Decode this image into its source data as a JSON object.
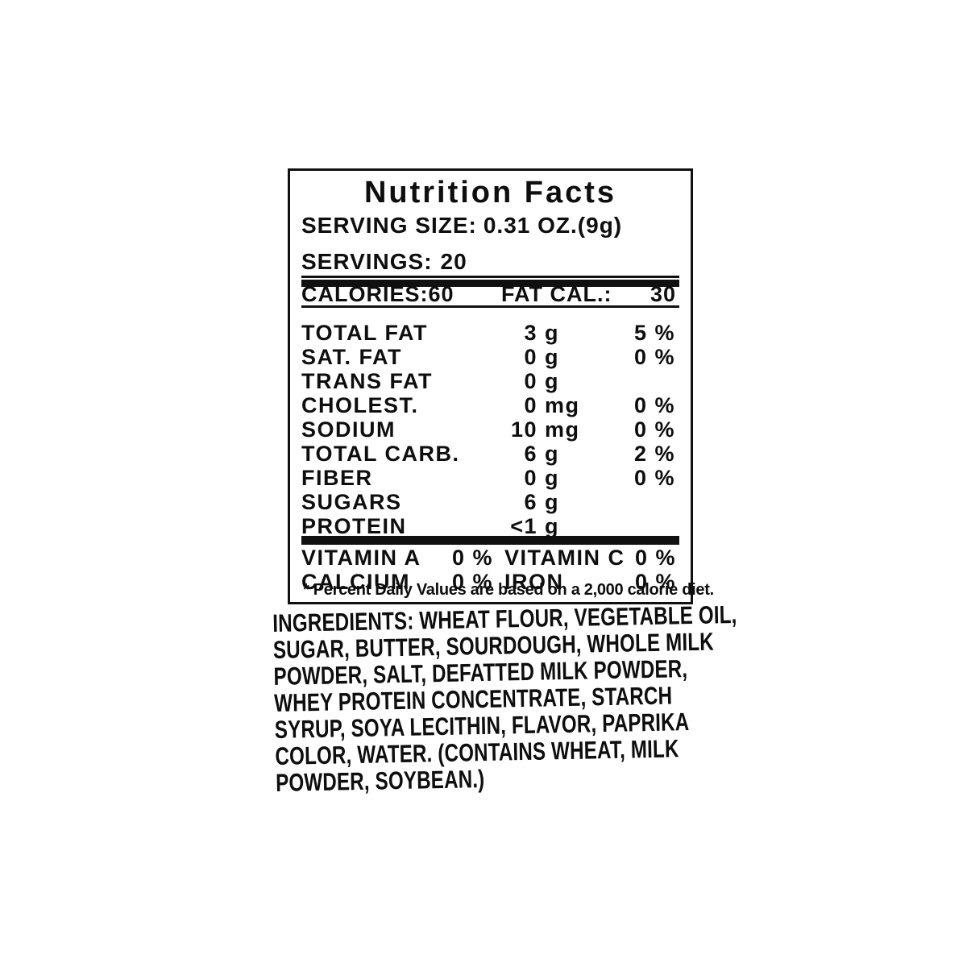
{
  "colors": {
    "ink": "#0e0e0e",
    "paper": "#ffffff"
  },
  "label": {
    "title": "Nutrition Facts",
    "serving_size": {
      "label": "SERVING SIZE:",
      "value": "0.31 OZ.(9g)"
    },
    "servings": {
      "label": "SERVINGS:",
      "value": "20"
    },
    "calories": {
      "label": "CALORIES:",
      "value": "60"
    },
    "fat_cal": {
      "label": "FAT CAL.:",
      "value": "30"
    },
    "nutrients": [
      {
        "name": "TOTAL FAT",
        "amount": "3",
        "unit": "g",
        "dv": "5 %"
      },
      {
        "name": "SAT. FAT",
        "amount": "0",
        "unit": "g",
        "dv": "0 %"
      },
      {
        "name": "TRANS FAT",
        "amount": "0",
        "unit": "g",
        "dv": ""
      },
      {
        "name": "CHOLEST.",
        "amount": "0",
        "unit": "mg",
        "dv": "0 %"
      },
      {
        "name": "SODIUM",
        "amount": "10",
        "unit": "mg",
        "dv": "0 %"
      },
      {
        "name": "TOTAL CARB.",
        "amount": "6",
        "unit": "g",
        "dv": "2 %"
      },
      {
        "name": "FIBER",
        "amount": "0",
        "unit": "g",
        "dv": "0 %"
      },
      {
        "name": "SUGARS",
        "amount": "6",
        "unit": "g",
        "dv": ""
      },
      {
        "name": "PROTEIN",
        "amount": "<1",
        "unit": "g",
        "dv": ""
      }
    ],
    "micronutrients": [
      {
        "name_left": "VITAMIN A",
        "value_left": "0 %",
        "name_right": "VITAMIN C",
        "value_right": "0 %"
      },
      {
        "name_left": "CALCIUM",
        "value_left": "0 %",
        "name_right": "IRON",
        "value_right": "0 %"
      }
    ],
    "footnote": "* Percent Daily Values are based on a 2,000 calorie diet."
  },
  "ingredients": {
    "lines": [
      "INGREDIENTS: WHEAT FLOUR, VEGETABLE OIL,",
      "SUGAR, BUTTER, SOURDOUGH, WHOLE MILK",
      "POWDER, SALT, DEFATTED MILK POWDER,",
      "WHEY PROTEIN CONCENTRATE, STARCH",
      "SYRUP, SOYA LECITHIN, FLAVOR, PAPRIKA",
      "COLOR, WATER. (CONTAINS WHEAT, MILK",
      "POWDER, SOYBEAN.)"
    ]
  }
}
